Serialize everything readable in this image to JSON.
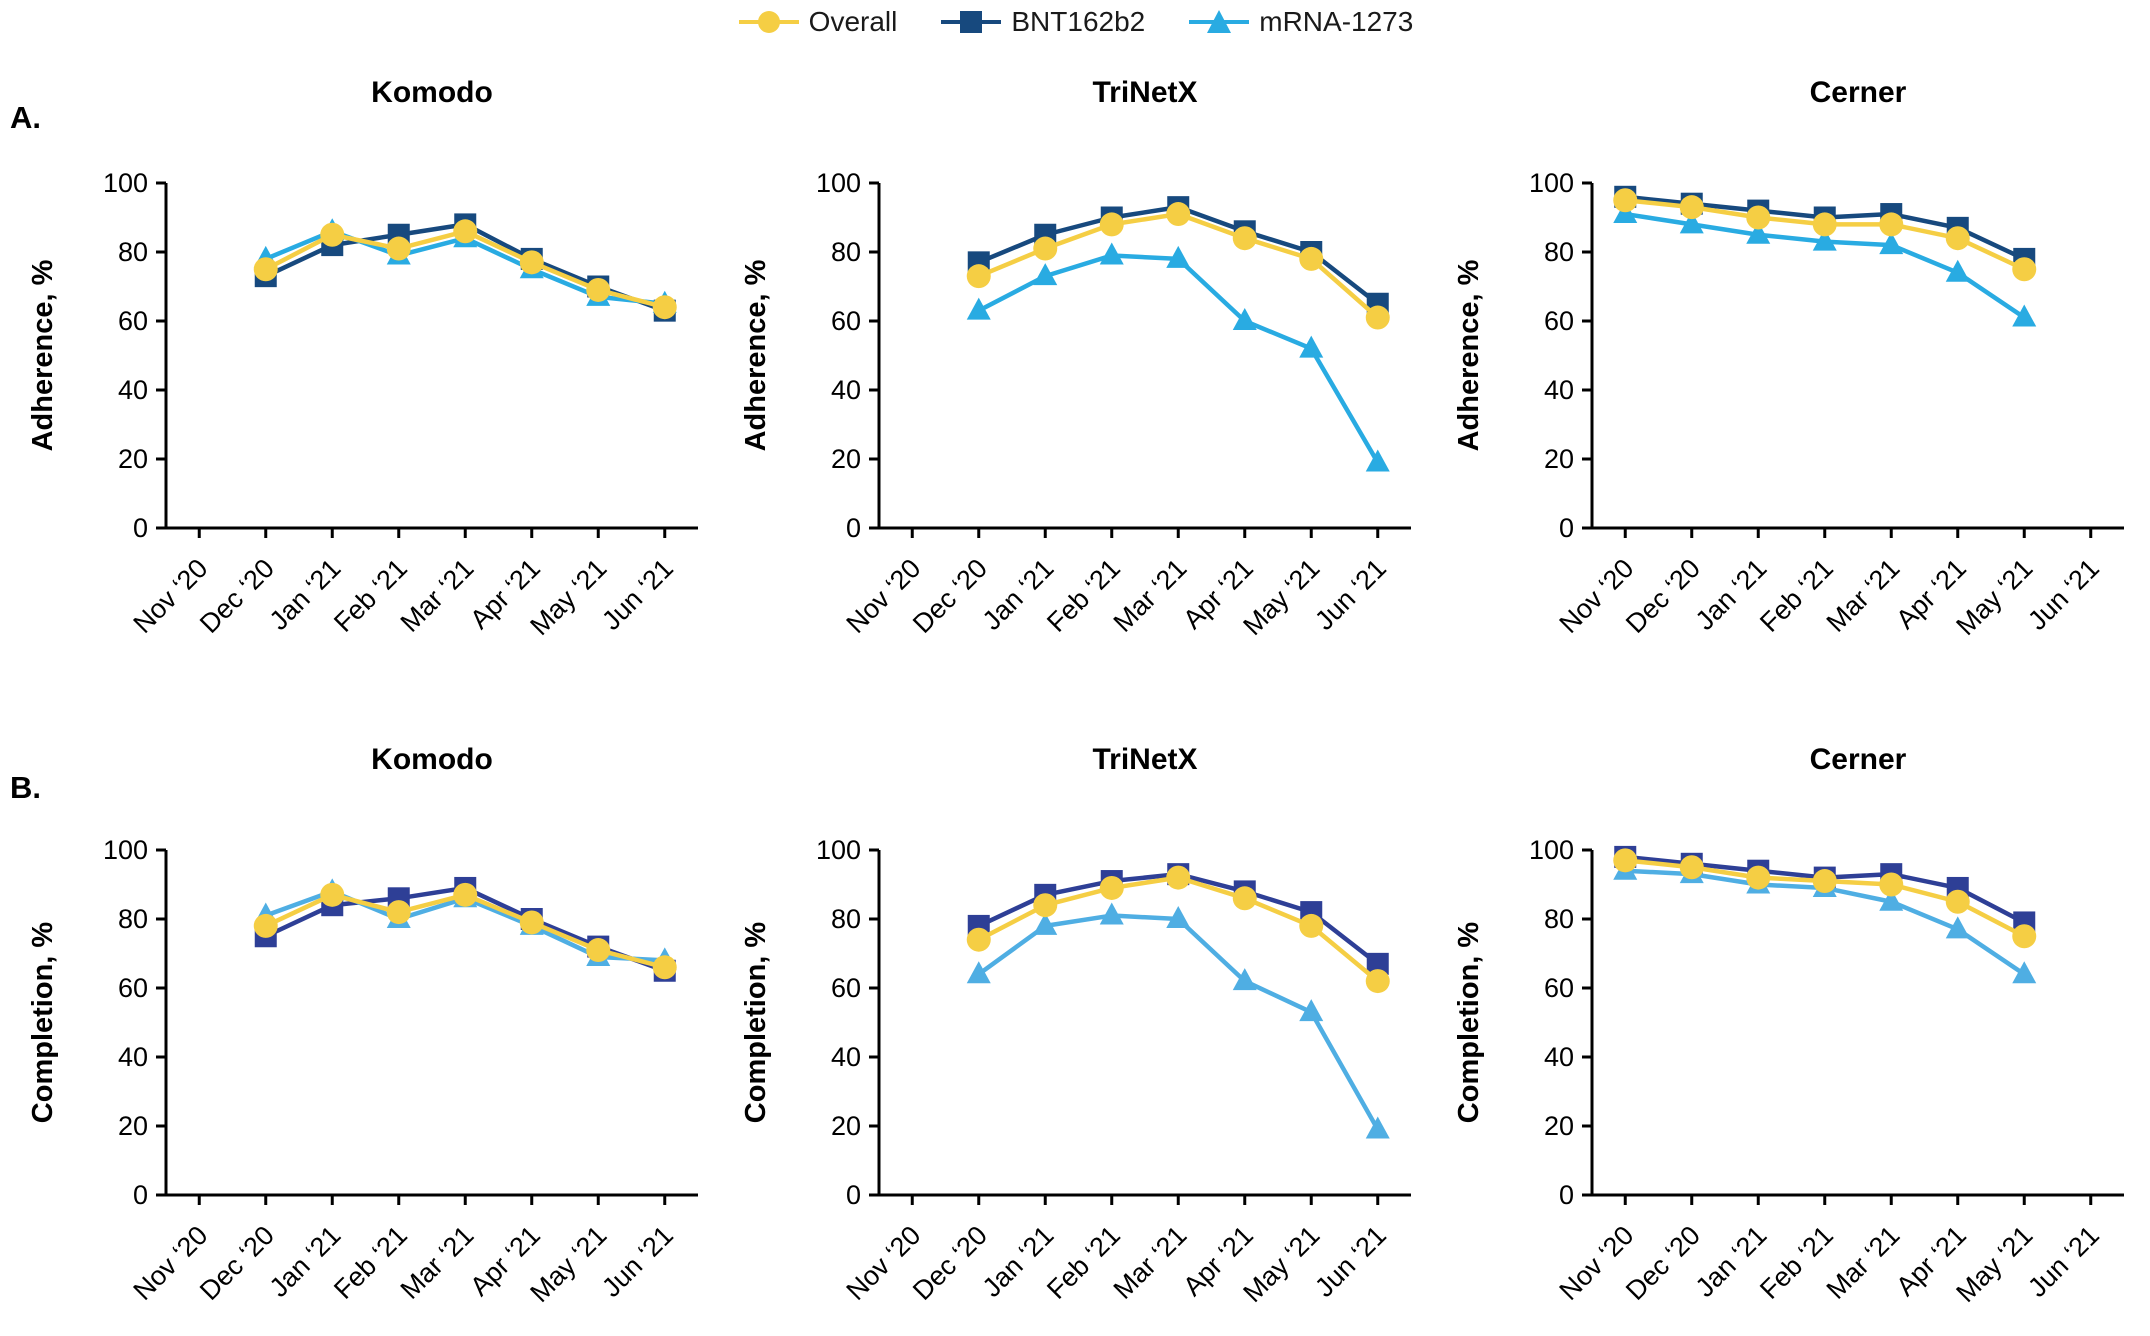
{
  "legend": {
    "items": [
      {
        "label": "Overall",
        "marker": "circle"
      },
      {
        "label": "BNT162b2",
        "marker": "square"
      },
      {
        "label": "mRNA-1273",
        "marker": "triangle"
      }
    ]
  },
  "panels": [
    {
      "label": "A."
    },
    {
      "label": "B."
    }
  ],
  "colors": {
    "overall": "#F5CE44",
    "bnt": "#17497E",
    "mrna": "#29ABE2",
    "bnt_b": "#2E3F96",
    "mrna_b": "#4FAEE3",
    "axis": "#000000"
  },
  "chart_data": [
    {
      "type": "line",
      "panel": "A",
      "title": "Komodo",
      "xlabel": "",
      "ylabel": "Adherence, %",
      "ylim": [
        0,
        100
      ],
      "yticks": [
        0,
        20,
        40,
        60,
        80,
        100
      ],
      "grid": false,
      "legend_position": "top-center-shared",
      "categories": [
        "Nov ‘20",
        "Dec ‘20",
        "Jan ‘21",
        "Feb ‘21",
        "Mar ‘21",
        "Apr ‘21",
        "May ‘21",
        "Jun ‘21"
      ],
      "series": [
        {
          "name": "BNT162b2",
          "marker": "square",
          "color_key": "bnt",
          "values": [
            null,
            73,
            82,
            85,
            88,
            78,
            70,
            63
          ]
        },
        {
          "name": "mRNA-1273",
          "marker": "triangle",
          "color_key": "mrna",
          "values": [
            null,
            78,
            86,
            79,
            84,
            75,
            67,
            65
          ]
        },
        {
          "name": "Overall",
          "marker": "circle",
          "color_key": "overall",
          "values": [
            null,
            75,
            85,
            81,
            86,
            77,
            69,
            64
          ]
        }
      ]
    },
    {
      "type": "line",
      "panel": "A",
      "title": "TriNetX",
      "xlabel": "",
      "ylabel": "Adherence, %",
      "ylim": [
        0,
        100
      ],
      "yticks": [
        0,
        20,
        40,
        60,
        80,
        100
      ],
      "grid": false,
      "legend_position": "top-center-shared",
      "categories": [
        "Nov ‘20",
        "Dec ‘20",
        "Jan ‘21",
        "Feb ‘21",
        "Mar ‘21",
        "Apr ‘21",
        "May ‘21",
        "Jun ‘21"
      ],
      "series": [
        {
          "name": "BNT162b2",
          "marker": "square",
          "color_key": "bnt",
          "values": [
            null,
            77,
            85,
            90,
            93,
            86,
            80,
            65
          ]
        },
        {
          "name": "mRNA-1273",
          "marker": "triangle",
          "color_key": "mrna",
          "values": [
            null,
            63,
            73,
            79,
            78,
            60,
            52,
            19
          ]
        },
        {
          "name": "Overall",
          "marker": "circle",
          "color_key": "overall",
          "values": [
            null,
            73,
            81,
            88,
            91,
            84,
            78,
            61
          ]
        }
      ]
    },
    {
      "type": "line",
      "panel": "A",
      "title": "Cerner",
      "xlabel": "",
      "ylabel": "Adherence, %",
      "ylim": [
        0,
        100
      ],
      "yticks": [
        0,
        20,
        40,
        60,
        80,
        100
      ],
      "grid": false,
      "legend_position": "top-center-shared",
      "categories": [
        "Nov ‘20",
        "Dec ‘20",
        "Jan ‘21",
        "Feb ‘21",
        "Mar ‘21",
        "Apr ‘21",
        "May ‘21",
        "Jun ‘21"
      ],
      "series": [
        {
          "name": "BNT162b2",
          "marker": "square",
          "color_key": "bnt",
          "values": [
            96,
            94,
            92,
            90,
            91,
            87,
            78,
            null
          ]
        },
        {
          "name": "mRNA-1273",
          "marker": "triangle",
          "color_key": "mrna",
          "values": [
            91,
            88,
            85,
            83,
            82,
            74,
            61,
            null
          ]
        },
        {
          "name": "Overall",
          "marker": "circle",
          "color_key": "overall",
          "values": [
            95,
            93,
            90,
            88,
            88,
            84,
            75,
            null
          ]
        }
      ]
    },
    {
      "type": "line",
      "panel": "B",
      "title": "Komodo",
      "xlabel": "",
      "ylabel": "Completion, %",
      "ylim": [
        0,
        100
      ],
      "yticks": [
        0,
        20,
        40,
        60,
        80,
        100
      ],
      "grid": false,
      "legend_position": "top-center-shared",
      "categories": [
        "Nov ‘20",
        "Dec ‘20",
        "Jan ‘21",
        "Feb ‘21",
        "Mar ‘21",
        "Apr ‘21",
        "May ‘21",
        "Jun ‘21"
      ],
      "series": [
        {
          "name": "BNT162b2",
          "marker": "square",
          "color_key": "bnt_b",
          "values": [
            null,
            75,
            84,
            86,
            89,
            80,
            72,
            65
          ]
        },
        {
          "name": "mRNA-1273",
          "marker": "triangle",
          "color_key": "mrna_b",
          "values": [
            null,
            81,
            88,
            80,
            86,
            78,
            69,
            68
          ]
        },
        {
          "name": "Overall",
          "marker": "circle",
          "color_key": "overall",
          "values": [
            null,
            78,
            87,
            82,
            87,
            79,
            71,
            66
          ]
        }
      ]
    },
    {
      "type": "line",
      "panel": "B",
      "title": "TriNetX",
      "xlabel": "",
      "ylabel": "Completion, %",
      "ylim": [
        0,
        100
      ],
      "yticks": [
        0,
        20,
        40,
        60,
        80,
        100
      ],
      "grid": false,
      "legend_position": "top-center-shared",
      "categories": [
        "Nov ‘20",
        "Dec ‘20",
        "Jan ‘21",
        "Feb ‘21",
        "Mar ‘21",
        "Apr ‘21",
        "May ‘21",
        "Jun ‘21"
      ],
      "series": [
        {
          "name": "BNT162b2",
          "marker": "square",
          "color_key": "bnt_b",
          "values": [
            null,
            78,
            87,
            91,
            93,
            88,
            82,
            67
          ]
        },
        {
          "name": "mRNA-1273",
          "marker": "triangle",
          "color_key": "mrna_b",
          "values": [
            null,
            64,
            78,
            81,
            80,
            62,
            53,
            19
          ]
        },
        {
          "name": "Overall",
          "marker": "circle",
          "color_key": "overall",
          "values": [
            null,
            74,
            84,
            89,
            92,
            86,
            78,
            62
          ]
        }
      ]
    },
    {
      "type": "line",
      "panel": "B",
      "title": "Cerner",
      "xlabel": "",
      "ylabel": "Completion, %",
      "ylim": [
        0,
        100
      ],
      "yticks": [
        0,
        20,
        40,
        60,
        80,
        100
      ],
      "grid": false,
      "legend_position": "top-center-shared",
      "categories": [
        "Nov ‘20",
        "Dec ‘20",
        "Jan ‘21",
        "Feb ‘21",
        "Mar ‘21",
        "Apr ‘21",
        "May ‘21",
        "Jun ‘21"
      ],
      "series": [
        {
          "name": "BNT162b2",
          "marker": "square",
          "color_key": "bnt_b",
          "values": [
            98,
            96,
            94,
            92,
            93,
            89,
            79,
            null
          ]
        },
        {
          "name": "mRNA-1273",
          "marker": "triangle",
          "color_key": "mrna_b",
          "values": [
            94,
            93,
            90,
            89,
            85,
            77,
            64,
            null
          ]
        },
        {
          "name": "Overall",
          "marker": "circle",
          "color_key": "overall",
          "values": [
            97,
            95,
            92,
            91,
            90,
            85,
            75,
            null
          ]
        }
      ]
    }
  ]
}
